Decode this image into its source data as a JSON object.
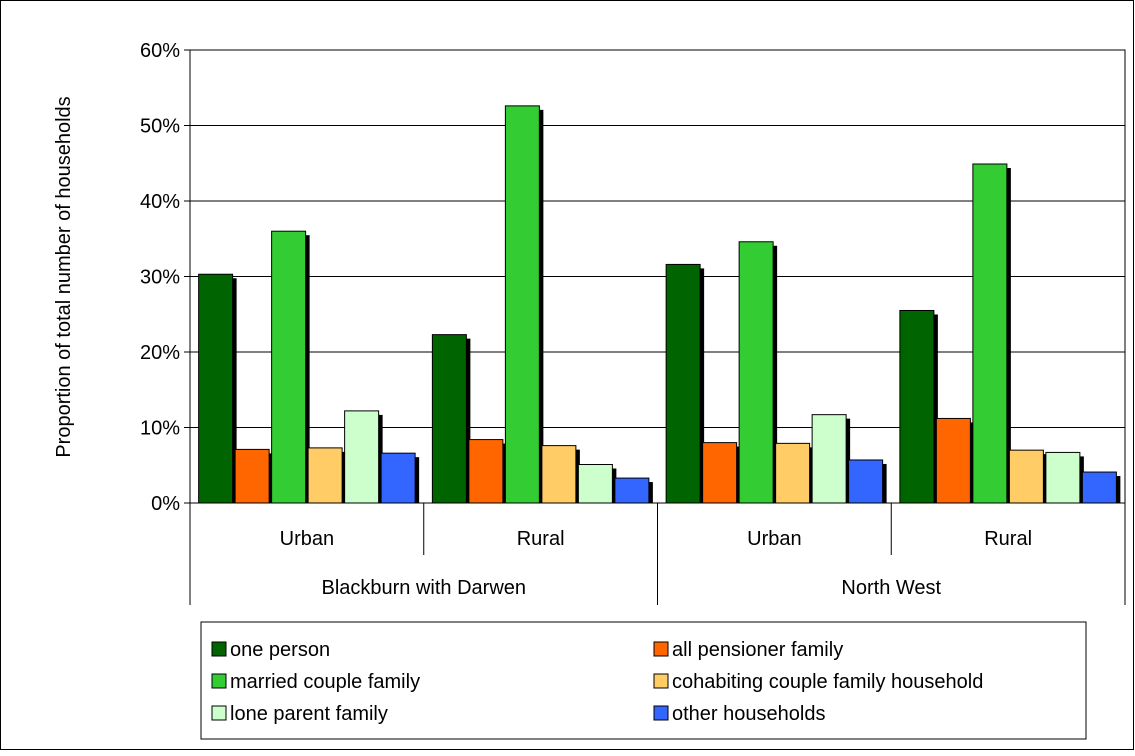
{
  "chart_data": {
    "type": "bar",
    "title": "",
    "ylabel": "Proportion of total number of households",
    "xlabel": "",
    "ylim": [
      0,
      60
    ],
    "yticks": [
      "0%",
      "10%",
      "20%",
      "30%",
      "40%",
      "50%",
      "60%"
    ],
    "grid": true,
    "legend_position": "bottom",
    "categories": [
      {
        "area": "Urban",
        "region": "Blackburn with Darwen"
      },
      {
        "area": "Rural",
        "region": "Blackburn with Darwen"
      },
      {
        "area": "Urban",
        "region": "North West"
      },
      {
        "area": "Rural",
        "region": "North West"
      }
    ],
    "groups": [
      {
        "label": "Blackburn with Darwen",
        "span": 2
      },
      {
        "label": "North West",
        "span": 2
      }
    ],
    "series": [
      {
        "name": "one person",
        "color": "#006400",
        "values": [
          30.3,
          22.3,
          31.6,
          25.5
        ]
      },
      {
        "name": "all pensioner family",
        "color": "#FF6600",
        "values": [
          7.1,
          8.4,
          8.0,
          11.2
        ]
      },
      {
        "name": "married couple family",
        "color": "#33CC33",
        "values": [
          36.0,
          52.6,
          34.6,
          44.9
        ]
      },
      {
        "name": "cohabiting couple family household",
        "color": "#FFCC66",
        "values": [
          7.3,
          7.6,
          7.9,
          7.0
        ]
      },
      {
        "name": "lone parent family",
        "color": "#CCFFCC",
        "values": [
          12.2,
          5.1,
          11.7,
          6.7
        ]
      },
      {
        "name": "other households",
        "color": "#3366FF",
        "values": [
          6.6,
          3.3,
          5.7,
          4.1
        ]
      }
    ]
  }
}
